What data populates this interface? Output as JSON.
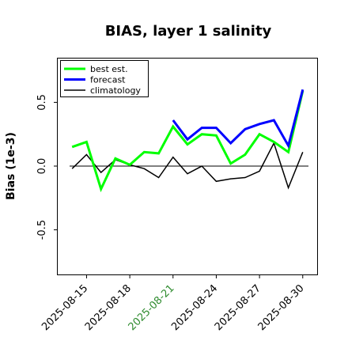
{
  "chart_data": {
    "type": "line",
    "title": "BIAS, layer 1 salinity",
    "xlabel": "",
    "ylabel": "Bias (1e-3)",
    "xlim": [
      "2025-08-13",
      "2025-08-31"
    ],
    "ylim": [
      -0.85,
      0.85
    ],
    "grid": false,
    "zero_line": true,
    "legend_position": "top-left",
    "x_ticks": [
      {
        "date": "2025-08-15",
        "label": "2025-08-15",
        "color": "#000000"
      },
      {
        "date": "2025-08-18",
        "label": "2025-08-18",
        "color": "#000000"
      },
      {
        "date": "2025-08-21",
        "label": "2025-08-21",
        "color": "#2e8b2e"
      },
      {
        "date": "2025-08-24",
        "label": "2025-08-24",
        "color": "#000000"
      },
      {
        "date": "2025-08-27",
        "label": "2025-08-27",
        "color": "#000000"
      },
      {
        "date": "2025-08-30",
        "label": "2025-08-30",
        "color": "#000000"
      }
    ],
    "y_ticks": [
      {
        "value": 0.5,
        "label": "0.5"
      },
      {
        "value": 0.0,
        "label": "0.0"
      },
      {
        "value": -0.5,
        "label": "-0.5"
      }
    ],
    "series": [
      {
        "name": "best est.",
        "color": "#00ff00",
        "width": 3,
        "x": [
          "2025-08-14",
          "2025-08-15",
          "2025-08-16",
          "2025-08-17",
          "2025-08-18",
          "2025-08-19",
          "2025-08-20",
          "2025-08-21",
          "2025-08-22",
          "2025-08-23",
          "2025-08-24",
          "2025-08-25",
          "2025-08-26",
          "2025-08-27",
          "2025-08-28",
          "2025-08-29",
          "2025-08-30"
        ],
        "y": [
          0.15,
          0.19,
          -0.18,
          0.06,
          0.01,
          0.11,
          0.1,
          0.31,
          0.17,
          0.25,
          0.24,
          0.02,
          0.09,
          0.25,
          0.19,
          0.11,
          0.59
        ]
      },
      {
        "name": "forecast",
        "color": "#0000ff",
        "width": 3,
        "x": [
          "2025-08-21",
          "2025-08-22",
          "2025-08-23",
          "2025-08-24",
          "2025-08-25",
          "2025-08-26",
          "2025-08-27",
          "2025-08-28",
          "2025-08-29",
          "2025-08-30"
        ],
        "y": [
          0.36,
          0.21,
          0.3,
          0.3,
          0.18,
          0.29,
          0.33,
          0.36,
          0.16,
          0.6
        ]
      },
      {
        "name": "climatology",
        "color": "#000000",
        "width": 1.5,
        "x": [
          "2025-08-14",
          "2025-08-15",
          "2025-08-16",
          "2025-08-17",
          "2025-08-18",
          "2025-08-19",
          "2025-08-20",
          "2025-08-21",
          "2025-08-22",
          "2025-08-23",
          "2025-08-24",
          "2025-08-25",
          "2025-08-26",
          "2025-08-27",
          "2025-08-28",
          "2025-08-29",
          "2025-08-30"
        ],
        "y": [
          -0.02,
          0.09,
          -0.05,
          0.05,
          0.01,
          -0.02,
          -0.09,
          0.07,
          -0.06,
          0.0,
          -0.12,
          -0.1,
          -0.09,
          -0.04,
          0.18,
          -0.17,
          0.11
        ]
      }
    ]
  }
}
